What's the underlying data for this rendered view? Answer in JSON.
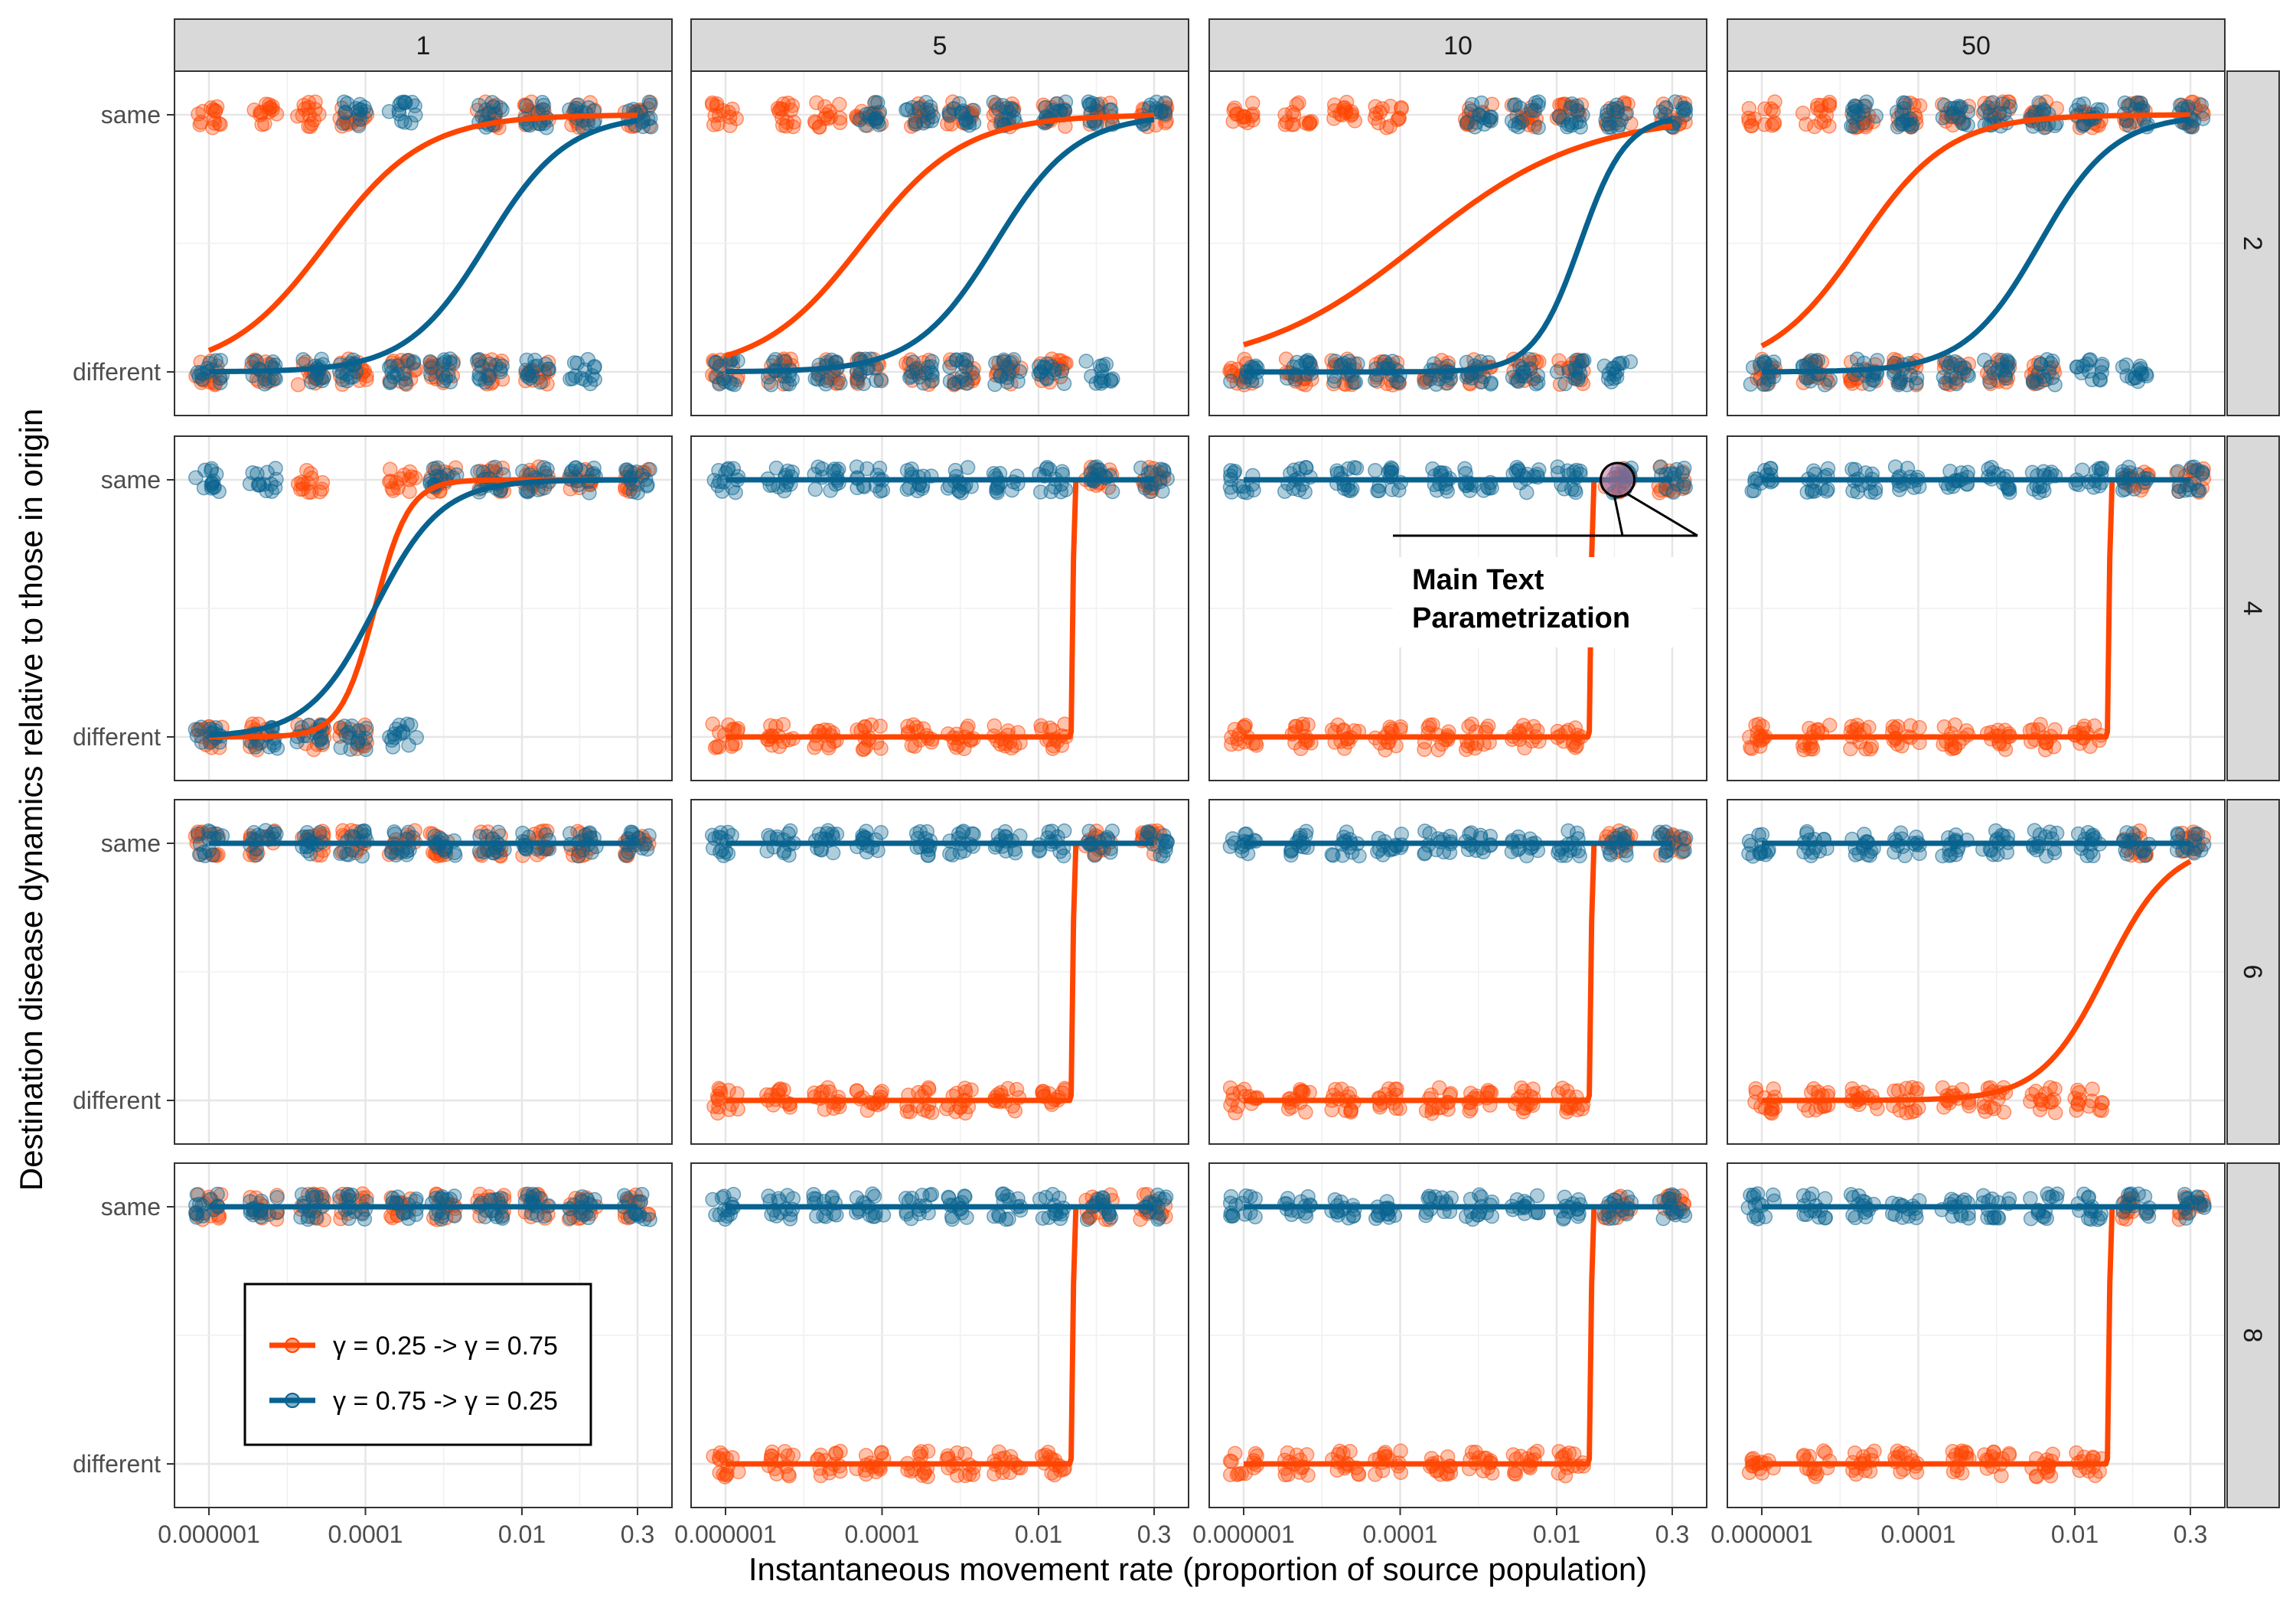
{
  "chart_data": {
    "type": "scatter",
    "layout": "facet_grid",
    "xlabel": "Instantaneous movement rate (proportion of source population)",
    "ylabel": "Destination disease dynamics relative to those in origin",
    "x_scale": "log10",
    "x_ticks": [
      1e-06,
      0.0001,
      0.01,
      0.3
    ],
    "x_tick_labels": [
      "0.000001",
      "0.0001",
      "0.01",
      "0.3"
    ],
    "y_categories": [
      "different",
      "same"
    ],
    "column_strips": [
      "1",
      "5",
      "10",
      "50"
    ],
    "row_strips": [
      "2",
      "4",
      "6",
      "8"
    ],
    "x_levels": [
      1e-06,
      5e-06,
      2e-05,
      7e-05,
      0.0003,
      0.001,
      0.004,
      0.015,
      0.06,
      0.3
    ],
    "grid": true,
    "legend_position": "inside bottom-left of row 8, column 1",
    "series": [
      {
        "name": "γ = 0.25 -> γ = 0.75",
        "color": "#FF4500"
      },
      {
        "name": "γ = 0.75 -> γ = 0.25",
        "color": "#08628F"
      }
    ],
    "panels": [
      {
        "row": "2",
        "col": "1",
        "points": [
          {
            "series": 0,
            "same": [
              0,
              1,
              2,
              3,
              6,
              7,
              8,
              9
            ],
            "different": [
              0,
              1,
              2,
              3,
              4,
              5,
              6,
              7
            ]
          },
          {
            "series": 1,
            "same": [
              3,
              4,
              6,
              7,
              8,
              9
            ],
            "different": [
              0,
              1,
              2,
              3,
              4,
              5,
              6,
              7,
              8
            ]
          }
        ],
        "curves": [
          {
            "series": 0,
            "kind": "logistic",
            "mid": -4.5,
            "slope": 1.6,
            "x_start": 1e-06,
            "x_end": 0.3
          },
          {
            "series": 1,
            "kind": "logistic",
            "mid": -2.45,
            "slope": 1.95,
            "x_start": 1e-06,
            "x_end": 0.3
          }
        ]
      },
      {
        "row": "2",
        "col": "5",
        "points": [
          {
            "series": 0,
            "same": [
              0,
              1,
              2,
              3,
              4,
              5,
              6,
              7,
              8,
              9
            ],
            "different": [
              0,
              1,
              2,
              3,
              4,
              5,
              6,
              7
            ]
          },
          {
            "series": 1,
            "same": [
              3,
              4,
              5,
              6,
              7,
              8,
              9
            ],
            "different": [
              0,
              1,
              2,
              3,
              4,
              5,
              6,
              7,
              8
            ]
          }
        ],
        "curves": [
          {
            "series": 0,
            "kind": "logistic",
            "mid": -4.25,
            "slope": 1.55,
            "x_start": 1e-06,
            "x_end": 0.3
          },
          {
            "series": 1,
            "kind": "logistic",
            "mid": -2.55,
            "slope": 1.95,
            "x_start": 1e-06,
            "x_end": 0.3
          }
        ]
      },
      {
        "row": "2",
        "col": "10",
        "points": [
          {
            "series": 0,
            "same": [
              0,
              1,
              2,
              3,
              5,
              6,
              7,
              8,
              9
            ],
            "different": [
              0,
              1,
              2,
              3,
              4,
              5,
              6,
              7
            ]
          },
          {
            "series": 1,
            "same": [
              5,
              6,
              7,
              8,
              9
            ],
            "different": [
              0,
              1,
              2,
              3,
              4,
              5,
              6,
              7,
              8
            ]
          }
        ],
        "curves": [
          {
            "series": 0,
            "kind": "logistic",
            "mid": -3.75,
            "slope": 0.95,
            "x_start": 1e-06,
            "x_end": 0.3
          },
          {
            "series": 1,
            "kind": "logistic",
            "mid": -1.7,
            "slope": 3.4,
            "x_start": 1e-06,
            "x_end": 0.3
          }
        ]
      },
      {
        "row": "2",
        "col": "50",
        "points": [
          {
            "series": 0,
            "same": [
              0,
              1,
              2,
              3,
              4,
              5,
              6,
              7,
              8,
              9
            ],
            "different": [
              0,
              1,
              2,
              3,
              4,
              5,
              6
            ]
          },
          {
            "series": 1,
            "same": [
              2,
              3,
              4,
              5,
              6,
              7,
              8,
              9
            ],
            "different": [
              0,
              1,
              2,
              3,
              4,
              5,
              6,
              7,
              8
            ]
          }
        ],
        "curves": [
          {
            "series": 0,
            "kind": "logistic",
            "mid": -4.75,
            "slope": 1.75,
            "x_start": 1e-06,
            "x_end": 0.3
          },
          {
            "series": 1,
            "kind": "logistic",
            "mid": -2.45,
            "slope": 2.1,
            "x_start": 1e-06,
            "x_end": 0.3
          }
        ]
      },
      {
        "row": "4",
        "col": "1",
        "points": [
          {
            "series": 0,
            "same": [
              2,
              4,
              5,
              6,
              7,
              8,
              9
            ],
            "different": [
              0,
              1,
              2,
              3
            ]
          },
          {
            "series": 1,
            "same": [
              0,
              1,
              5,
              6,
              7,
              8,
              9
            ],
            "different": [
              0,
              1,
              2,
              3,
              4
            ]
          }
        ],
        "curves": [
          {
            "series": 0,
            "kind": "logistic",
            "mid": -3.88,
            "slope": 4.6,
            "x_start": 1e-06,
            "x_end": 0.3
          },
          {
            "series": 1,
            "kind": "logistic",
            "mid": -3.88,
            "slope": 2.35,
            "x_start": 1e-06,
            "x_end": 0.3
          }
        ]
      },
      {
        "row": "4",
        "col": "5",
        "points": [
          {
            "series": 0,
            "same": [
              8,
              9
            ],
            "different": [
              0,
              1,
              2,
              3,
              4,
              5,
              6,
              7
            ]
          },
          {
            "series": 1,
            "same": [
              0,
              1,
              2,
              3,
              4,
              5,
              6,
              7,
              8,
              9
            ],
            "different": []
          }
        ],
        "curves": [
          {
            "series": 0,
            "kind": "step",
            "step_x": 0.028,
            "x_start": 1e-06,
            "x_end": 0.3
          },
          {
            "series": 1,
            "kind": "flat",
            "level": 1,
            "x_start": 1e-06,
            "x_end": 0.3
          }
        ]
      },
      {
        "row": "4",
        "col": "10",
        "points": [
          {
            "series": 0,
            "same": [
              8,
              9
            ],
            "different": [
              0,
              1,
              2,
              3,
              4,
              5,
              6,
              7
            ]
          },
          {
            "series": 1,
            "same": [
              0,
              1,
              2,
              3,
              4,
              5,
              6,
              7,
              8,
              9
            ],
            "different": []
          }
        ],
        "curves": [
          {
            "series": 0,
            "kind": "step",
            "step_x": 0.028,
            "x_start": 1e-06,
            "x_end": 0.3
          },
          {
            "series": 1,
            "kind": "flat",
            "level": 1,
            "x_start": 1e-06,
            "x_end": 0.3
          }
        ],
        "annotation": {
          "text_lines": [
            "Main Text",
            "Parametrization"
          ],
          "x": 0.06,
          "level": 1
        }
      },
      {
        "row": "4",
        "col": "50",
        "points": [
          {
            "series": 0,
            "same": [
              8,
              9
            ],
            "different": [
              0,
              1,
              2,
              3,
              4,
              5,
              6,
              7
            ]
          },
          {
            "series": 1,
            "same": [
              0,
              1,
              2,
              3,
              4,
              5,
              6,
              7,
              8,
              9
            ],
            "different": []
          }
        ],
        "curves": [
          {
            "series": 0,
            "kind": "step",
            "step_x": 0.028,
            "x_start": 1e-06,
            "x_end": 0.3
          },
          {
            "series": 1,
            "kind": "flat",
            "level": 1,
            "x_start": 1e-06,
            "x_end": 0.3
          }
        ]
      },
      {
        "row": "6",
        "col": "1",
        "points": [
          {
            "series": 0,
            "same": [
              0,
              1,
              2,
              3,
              4,
              5,
              6,
              7,
              8,
              9
            ],
            "different": []
          },
          {
            "series": 1,
            "same": [
              0,
              1,
              2,
              3,
              4,
              5,
              6,
              7,
              8,
              9
            ],
            "different": []
          }
        ],
        "curves": [
          {
            "series": 0,
            "kind": "flat",
            "level": 1,
            "x_start": 1e-06,
            "x_end": 0.3
          },
          {
            "series": 1,
            "kind": "flat",
            "level": 1,
            "x_start": 1e-06,
            "x_end": 0.3
          }
        ]
      },
      {
        "row": "6",
        "col": "5",
        "points": [
          {
            "series": 0,
            "same": [
              8,
              9
            ],
            "different": [
              0,
              1,
              2,
              3,
              4,
              5,
              6,
              7
            ]
          },
          {
            "series": 1,
            "same": [
              0,
              1,
              2,
              3,
              4,
              5,
              6,
              7,
              8,
              9
            ],
            "different": []
          }
        ],
        "curves": [
          {
            "series": 0,
            "kind": "step",
            "step_x": 0.028,
            "x_start": 1e-06,
            "x_end": 0.3
          },
          {
            "series": 1,
            "kind": "flat",
            "level": 1,
            "x_start": 1e-06,
            "x_end": 0.3
          }
        ]
      },
      {
        "row": "6",
        "col": "10",
        "points": [
          {
            "series": 0,
            "same": [
              8,
              9
            ],
            "different": [
              0,
              1,
              2,
              3,
              4,
              5,
              6,
              7
            ]
          },
          {
            "series": 1,
            "same": [
              0,
              1,
              2,
              3,
              4,
              5,
              6,
              7,
              8,
              9
            ],
            "different": []
          }
        ],
        "curves": [
          {
            "series": 0,
            "kind": "step",
            "step_x": 0.028,
            "x_start": 1e-06,
            "x_end": 0.3
          },
          {
            "series": 1,
            "kind": "flat",
            "level": 1,
            "x_start": 1e-06,
            "x_end": 0.3
          }
        ]
      },
      {
        "row": "6",
        "col": "50",
        "points": [
          {
            "series": 0,
            "same": [
              8,
              9
            ],
            "different": [
              0,
              1,
              2,
              3,
              4,
              5,
              6,
              7
            ]
          },
          {
            "series": 1,
            "same": [
              0,
              1,
              2,
              3,
              4,
              5,
              6,
              7,
              8,
              9
            ],
            "different": []
          }
        ],
        "curves": [
          {
            "series": 0,
            "kind": "logistic",
            "mid": -1.6,
            "slope": 2.4,
            "x_start": 1e-06,
            "x_end": 0.3
          },
          {
            "series": 1,
            "kind": "flat",
            "level": 1,
            "x_start": 1e-06,
            "x_end": 0.3
          }
        ]
      },
      {
        "row": "8",
        "col": "1",
        "points": [
          {
            "series": 0,
            "same": [
              0,
              1,
              2,
              3,
              4,
              5,
              6,
              7,
              8,
              9
            ],
            "different": []
          },
          {
            "series": 1,
            "same": [
              0,
              1,
              2,
              3,
              4,
              5,
              6,
              7,
              8,
              9
            ],
            "different": []
          }
        ],
        "curves": [
          {
            "series": 0,
            "kind": "flat",
            "level": 1,
            "x_start": 1e-06,
            "x_end": 0.3
          },
          {
            "series": 1,
            "kind": "flat",
            "level": 1,
            "x_start": 1e-06,
            "x_end": 0.3
          }
        ]
      },
      {
        "row": "8",
        "col": "5",
        "points": [
          {
            "series": 0,
            "same": [
              8,
              9
            ],
            "different": [
              0,
              1,
              2,
              3,
              4,
              5,
              6,
              7
            ]
          },
          {
            "series": 1,
            "same": [
              0,
              1,
              2,
              3,
              4,
              5,
              6,
              7,
              8,
              9
            ],
            "different": []
          }
        ],
        "curves": [
          {
            "series": 0,
            "kind": "step",
            "step_x": 0.028,
            "x_start": 1e-06,
            "x_end": 0.3
          },
          {
            "series": 1,
            "kind": "flat",
            "level": 1,
            "x_start": 1e-06,
            "x_end": 0.3
          }
        ]
      },
      {
        "row": "8",
        "col": "10",
        "points": [
          {
            "series": 0,
            "same": [
              8,
              9
            ],
            "different": [
              0,
              1,
              2,
              3,
              4,
              5,
              6,
              7
            ]
          },
          {
            "series": 1,
            "same": [
              0,
              1,
              2,
              3,
              4,
              5,
              6,
              7,
              8,
              9
            ],
            "different": []
          }
        ],
        "curves": [
          {
            "series": 0,
            "kind": "step",
            "step_x": 0.028,
            "x_start": 1e-06,
            "x_end": 0.3
          },
          {
            "series": 1,
            "kind": "flat",
            "level": 1,
            "x_start": 1e-06,
            "x_end": 0.3
          }
        ]
      },
      {
        "row": "8",
        "col": "50",
        "points": [
          {
            "series": 0,
            "same": [
              8,
              9
            ],
            "different": [
              0,
              1,
              2,
              3,
              4,
              5,
              6,
              7
            ]
          },
          {
            "series": 1,
            "same": [
              0,
              1,
              2,
              3,
              4,
              5,
              6,
              7,
              8,
              9
            ],
            "different": []
          }
        ],
        "curves": [
          {
            "series": 0,
            "kind": "step",
            "step_x": 0.028,
            "x_start": 1e-06,
            "x_end": 0.3
          },
          {
            "series": 1,
            "kind": "flat",
            "level": 1,
            "x_start": 1e-06,
            "x_end": 0.3
          }
        ]
      }
    ]
  }
}
